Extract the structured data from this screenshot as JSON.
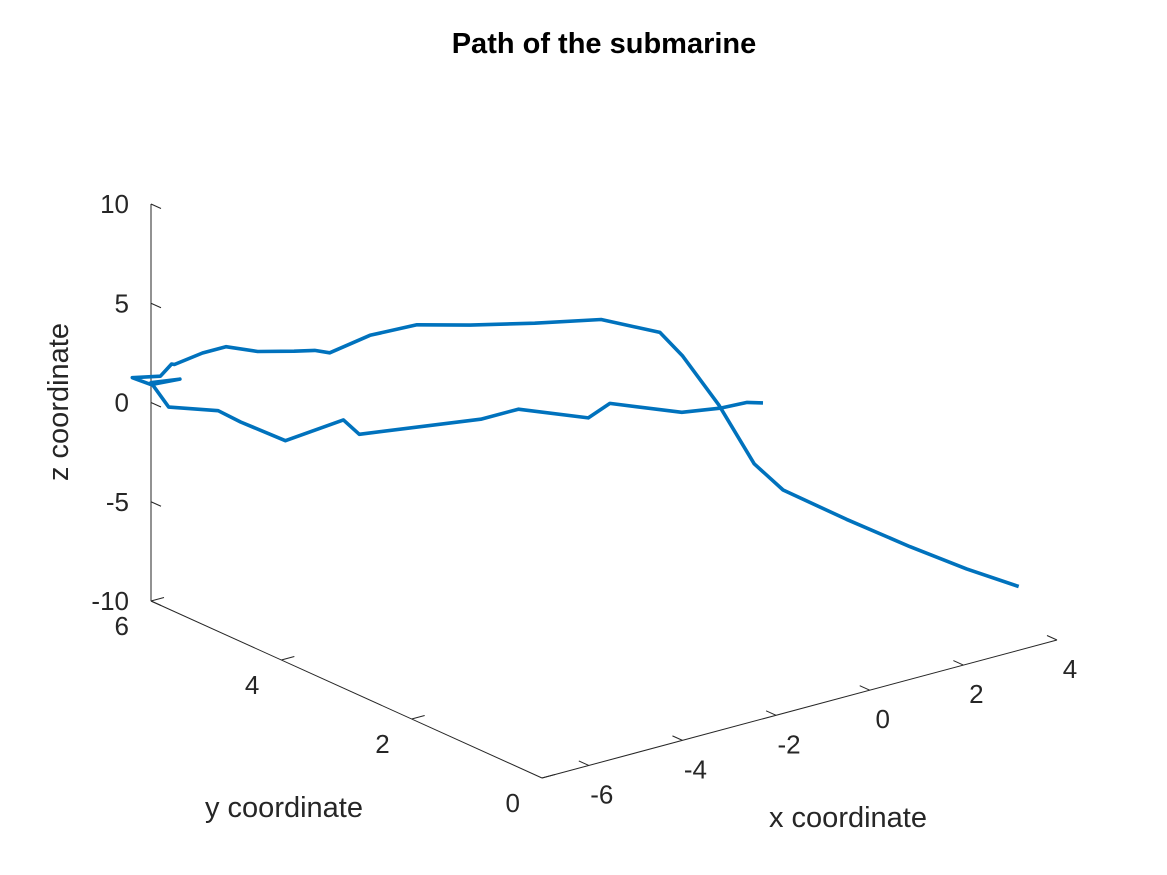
{
  "chart_data": {
    "type": "line",
    "projection": "3d",
    "title": "Path of the submarine",
    "xlabel": "x coordinate",
    "ylabel": "y coordinate",
    "zlabel": "z coordinate",
    "xlim": [
      -7,
      4
    ],
    "ylim": [
      0,
      6
    ],
    "zlim": [
      -10,
      10
    ],
    "xticks": [
      "-6",
      "-4",
      "-2",
      "0",
      "2",
      "4"
    ],
    "yticks": [
      "0",
      "2",
      "4",
      "6"
    ],
    "zticks": [
      "-10",
      "-5",
      "0",
      "5",
      "10"
    ],
    "grid": false,
    "series": [
      {
        "color": "#0072BD",
        "points": [
          [
            3.6,
            0.3,
            -7.5
          ],
          [
            3.6,
            1.1,
            -7.8
          ],
          [
            3.5,
            1.9,
            -7.8
          ],
          [
            3.4,
            2.8,
            -7.7
          ],
          [
            3.3,
            3.7,
            -7.5
          ],
          [
            3.1,
            4.0,
            -6.5
          ],
          [
            2.9,
            4.4,
            -4.0
          ],
          [
            2.4,
            4.6,
            -1.5
          ],
          [
            2.2,
            4.8,
            -0.5
          ],
          [
            1.5,
            5.2,
            0.0
          ],
          [
            0.5,
            5.5,
            0.0
          ],
          [
            -0.6,
            5.7,
            0.3
          ],
          [
            -1.6,
            5.8,
            0.8
          ],
          [
            -2.6,
            5.8,
            0.9
          ],
          [
            -3.6,
            5.7,
            0.8
          ],
          [
            -4.2,
            5.5,
            1.6
          ],
          [
            -4.5,
            5.6,
            1.6
          ],
          [
            -5.0,
            5.8,
            1.6
          ],
          [
            -5.4,
            6.0,
            1.8
          ],
          [
            -5.9,
            6.0,
            1.8
          ],
          [
            -6.5,
            6.0,
            1.6
          ],
          [
            -6.7,
            5.9,
            1.9
          ],
          [
            -6.8,
            6.0,
            1.2
          ],
          [
            -7.4,
            6.0,
            1.5
          ],
          [
            -7.0,
            6.0,
            0.9
          ],
          [
            -6.8,
            5.7,
            1.5
          ],
          [
            -7.0,
            6.0,
            1.0
          ],
          [
            -6.9,
            5.8,
            0.0
          ],
          [
            -6.4,
            5.4,
            0.1
          ],
          [
            -6.2,
            5.2,
            -0.3
          ],
          [
            -5.8,
            4.8,
            -0.9
          ],
          [
            -4.7,
            4.7,
            -0.4
          ],
          [
            -4.5,
            4.6,
            -1.1
          ],
          [
            -2.6,
            4.1,
            -0.8
          ],
          [
            -1.8,
            4.1,
            -0.8
          ],
          [
            -1.0,
            3.6,
            -1.0
          ],
          [
            -0.4,
            3.7,
            -0.8
          ],
          [
            0.3,
            3.1,
            -0.8
          ],
          [
            0.7,
            2.8,
            -0.4
          ],
          [
            1.0,
            2.6,
            0.0
          ],
          [
            1.2,
            2.5,
            0.0
          ]
        ]
      }
    ]
  }
}
